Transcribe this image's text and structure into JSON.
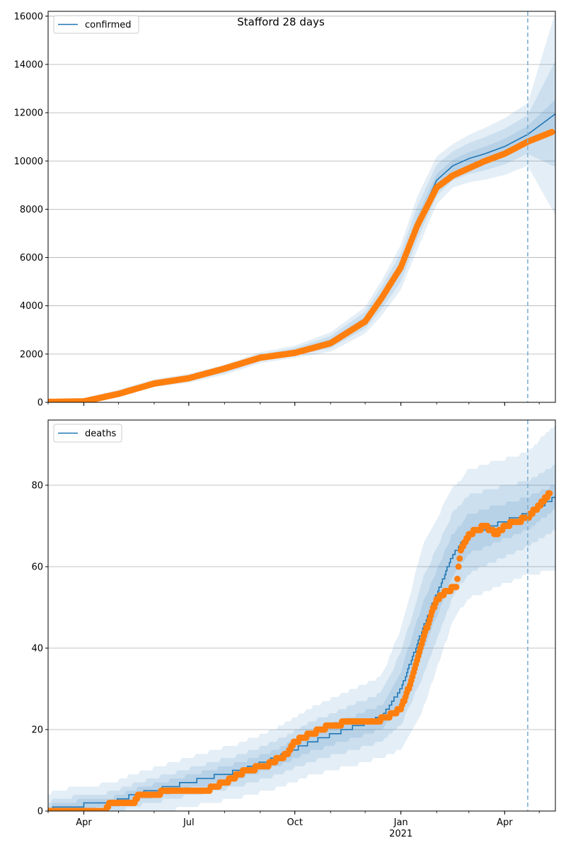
{
  "figure": {
    "title": "Stafford 28 days"
  },
  "chart_data": [
    {
      "type": "line",
      "series": [
        {
          "name": "confirmed",
          "kind": "model-line"
        },
        {
          "name": "",
          "kind": "observed-scatter"
        }
      ],
      "xlim": [
        "2020-03-01",
        "2021-05-15"
      ],
      "ylim": [
        0,
        16200
      ],
      "x_ticks": [
        {
          "date": "2020-04-01",
          "label": "Apr"
        },
        {
          "date": "2020-07-01",
          "label": "Jul"
        },
        {
          "date": "2020-10-01",
          "label": "Oct"
        },
        {
          "date": "2021-01-01",
          "label": "Jan",
          "sublabel": ""
        },
        {
          "date": "2021-04-01",
          "label": "Apr"
        }
      ],
      "y_ticks": [
        0,
        2000,
        4000,
        6000,
        8000,
        10000,
        12000,
        14000,
        16000
      ],
      "forecast_start": "2021-04-21",
      "model_knots": [
        [
          "2020-03-01",
          20
        ],
        [
          "2020-04-01",
          60
        ],
        [
          "2020-05-01",
          380
        ],
        [
          "2020-06-01",
          800
        ],
        [
          "2020-07-01",
          1000
        ],
        [
          "2020-08-01",
          1350
        ],
        [
          "2020-09-01",
          1850
        ],
        [
          "2020-10-01",
          2100
        ],
        [
          "2020-11-01",
          2500
        ],
        [
          "2020-12-01",
          3400
        ],
        [
          "2020-12-15",
          4300
        ],
        [
          "2021-01-01",
          5600
        ],
        [
          "2021-01-15",
          7400
        ],
        [
          "2021-02-01",
          9200
        ],
        [
          "2021-02-15",
          9800
        ],
        [
          "2021-03-01",
          10100
        ],
        [
          "2021-03-15",
          10300
        ],
        [
          "2021-04-01",
          10600
        ],
        [
          "2021-04-21",
          11100
        ],
        [
          "2021-05-15",
          11950
        ]
      ],
      "observed_knots": [
        [
          "2020-03-01",
          20
        ],
        [
          "2020-04-01",
          40
        ],
        [
          "2020-05-01",
          350
        ],
        [
          "2020-06-01",
          780
        ],
        [
          "2020-07-01",
          1000
        ],
        [
          "2020-08-01",
          1400
        ],
        [
          "2020-09-01",
          1850
        ],
        [
          "2020-10-01",
          2050
        ],
        [
          "2020-11-01",
          2450
        ],
        [
          "2020-12-01",
          3350
        ],
        [
          "2020-12-15",
          4300
        ],
        [
          "2021-01-01",
          5600
        ],
        [
          "2021-01-15",
          7300
        ],
        [
          "2021-02-01",
          8900
        ],
        [
          "2021-02-15",
          9400
        ],
        [
          "2021-03-01",
          9700
        ],
        [
          "2021-03-15",
          10000
        ],
        [
          "2021-04-01",
          10300
        ],
        [
          "2021-04-21",
          10800
        ],
        [
          "2021-05-12",
          11200
        ]
      ],
      "band_half_widths": [
        [
          "2020-03-01",
          [
            30,
            60,
            100
          ]
        ],
        [
          "2020-10-01",
          [
            80,
            150,
            250
          ]
        ],
        [
          "2020-12-01",
          [
            150,
            350,
            550
          ]
        ],
        [
          "2021-01-15",
          [
            300,
            700,
            1100
          ]
        ],
        [
          "2021-02-15",
          [
            250,
            600,
            900
          ]
        ],
        [
          "2021-04-21",
          [
            350,
            800,
            1300
          ]
        ],
        [
          "2021-05-15",
          [
            600,
            2200,
            4200
          ]
        ]
      ],
      "legend_position": "upper-left",
      "grid": "horizontal"
    },
    {
      "type": "line",
      "series": [
        {
          "name": "deaths",
          "kind": "model-step"
        },
        {
          "name": "",
          "kind": "observed-scatter"
        }
      ],
      "xlim": [
        "2020-03-01",
        "2021-05-15"
      ],
      "ylim": [
        0,
        96
      ],
      "x_ticks": [
        {
          "date": "2020-04-01",
          "label": "Apr"
        },
        {
          "date": "2020-07-01",
          "label": "Jul"
        },
        {
          "date": "2020-10-01",
          "label": "Oct"
        },
        {
          "date": "2021-01-01",
          "label": "Jan",
          "sublabel": "2021"
        },
        {
          "date": "2021-04-01",
          "label": "Apr"
        }
      ],
      "y_ticks": [
        0,
        20,
        40,
        60,
        80
      ],
      "forecast_start": "2021-04-21",
      "model_knots": [
        [
          "2020-03-01",
          0
        ],
        [
          "2020-03-08",
          1
        ],
        [
          "2020-04-25",
          2
        ],
        [
          "2020-05-15",
          4
        ],
        [
          "2020-06-15",
          6
        ],
        [
          "2020-07-15",
          8
        ],
        [
          "2020-08-15",
          10
        ],
        [
          "2020-09-15",
          13
        ],
        [
          "2020-10-15",
          17
        ],
        [
          "2020-11-15",
          20
        ],
        [
          "2020-12-15",
          23
        ],
        [
          "2021-01-01",
          30
        ],
        [
          "2021-01-20",
          45
        ],
        [
          "2021-02-15",
          63
        ],
        [
          "2021-03-01",
          68
        ],
        [
          "2021-03-20",
          70
        ],
        [
          "2021-04-21",
          73
        ],
        [
          "2021-05-15",
          77
        ]
      ],
      "observed_knots": [
        [
          "2020-03-01",
          0
        ],
        [
          "2020-04-20",
          0
        ],
        [
          "2020-04-24",
          2
        ],
        [
          "2020-05-15",
          2
        ],
        [
          "2020-05-18",
          4
        ],
        [
          "2020-06-05",
          4
        ],
        [
          "2020-06-08",
          5
        ],
        [
          "2020-07-15",
          5
        ],
        [
          "2020-08-01",
          7
        ],
        [
          "2020-08-20",
          10
        ],
        [
          "2020-09-05",
          11
        ],
        [
          "2020-09-25",
          14
        ],
        [
          "2020-10-01",
          17
        ],
        [
          "2020-10-15",
          19
        ],
        [
          "2020-11-01",
          21
        ],
        [
          "2020-11-20",
          22
        ],
        [
          "2020-12-10",
          22
        ],
        [
          "2020-12-20",
          23
        ],
        [
          "2021-01-01",
          25
        ],
        [
          "2021-01-10",
          32
        ],
        [
          "2021-01-20",
          42
        ],
        [
          "2021-02-01",
          52
        ],
        [
          "2021-02-10",
          54
        ],
        [
          "2021-02-18",
          55
        ],
        [
          "2021-02-22",
          64
        ],
        [
          "2021-03-01",
          68
        ],
        [
          "2021-03-15",
          70
        ],
        [
          "2021-03-25",
          68
        ],
        [
          "2021-04-01",
          70
        ],
        [
          "2021-04-21",
          72
        ],
        [
          "2021-05-01",
          75
        ],
        [
          "2021-05-10",
          78
        ]
      ],
      "band_half_widths": [
        [
          "2020-03-01",
          [
            1,
            2,
            4
          ]
        ],
        [
          "2020-09-01",
          [
            2,
            4,
            7
          ]
        ],
        [
          "2020-12-15",
          [
            3,
            6,
            10
          ]
        ],
        [
          "2021-01-20",
          [
            6,
            12,
            20
          ]
        ],
        [
          "2021-02-20",
          [
            5,
            10,
            16
          ]
        ],
        [
          "2021-04-21",
          [
            4,
            8,
            15
          ]
        ],
        [
          "2021-05-15",
          [
            3,
            8,
            18
          ]
        ]
      ],
      "legend_position": "upper-left",
      "grid": "horizontal"
    }
  ],
  "colors": {
    "model": "#1f77b4",
    "observed": "#ff7f0e",
    "band": "#1f77b4",
    "grid": "#b0b0b0",
    "forecast_line": "#7fb0d3"
  }
}
